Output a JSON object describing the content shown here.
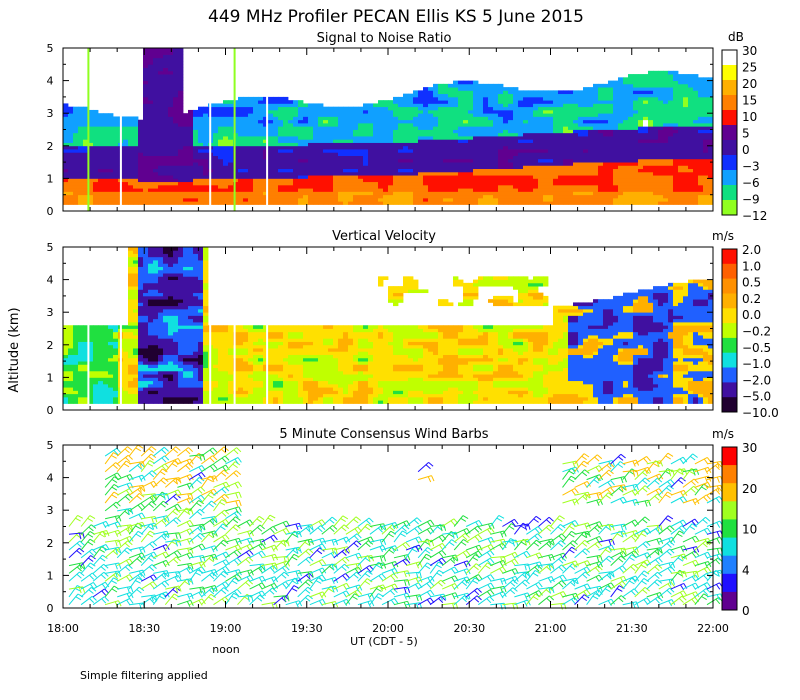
{
  "title": "449 MHz Profiler PECAN Ellis KS  5 June 2015",
  "footnote": "Simple filtering applied",
  "y_axis_label": "Altitude (km)",
  "y_ticks": [
    "0",
    "1",
    "2",
    "3",
    "4",
    "5"
  ],
  "x_axis": {
    "label": "UT  (CDT - 5)",
    "ticks": [
      "18:00",
      "18:30",
      "19:00",
      "19:30",
      "20:00",
      "20:30",
      "21:00",
      "21:30",
      "22:00"
    ],
    "noon_label": "noon",
    "range_hours": [
      18,
      22
    ]
  },
  "panels": [
    {
      "title": "Signal to Noise Ratio",
      "unit": "dB",
      "colorbar": {
        "labels": [
          "30",
          "25",
          "20",
          "15",
          "10",
          "5",
          "0",
          "−3",
          "−6",
          "−9",
          "−12"
        ],
        "colors": [
          "#ffffff",
          "#ffff00",
          "#ffb000",
          "#ff7f00",
          "#ff1000",
          "#600090",
          "#4010a0",
          "#1030ff",
          "#10a0ff",
          "#10e080",
          "#90ff20"
        ]
      }
    },
    {
      "title": "Vertical Velocity",
      "unit": "m/s",
      "colorbar": {
        "labels": [
          "2.0",
          "1.0",
          "0.5",
          "0.2",
          "0.0",
          "−0.2",
          "−0.5",
          "−1.0",
          "−2.0",
          "−5.0",
          "−10.0"
        ],
        "colors": [
          "#ff1000",
          "#ff6000",
          "#ff9000",
          "#ffb000",
          "#ffe000",
          "#c0ff00",
          "#20e040",
          "#10e0e0",
          "#2060ff",
          "#4010a0",
          "#200030"
        ]
      }
    },
    {
      "title": "5 Minute Consensus Wind Barbs",
      "unit": "m/s",
      "colorbar": {
        "labels": [
          "30",
          "20",
          "10",
          "4",
          "0"
        ],
        "colors": [
          "#ff0000",
          "#ff8000",
          "#ffc000",
          "#a0ff20",
          "#20e040",
          "#10e0e0",
          "#2080ff",
          "#2010ff",
          "#600090"
        ]
      }
    }
  ],
  "chart_data": [
    {
      "type": "heatmap",
      "title": "Signal to Noise Ratio",
      "xlabel": "UT  (CDT - 5)",
      "ylabel": "Altitude (km)",
      "x": [
        "18:00",
        "18:30",
        "19:00",
        "19:30",
        "20:00",
        "20:30",
        "21:00",
        "21:30",
        "22:00"
      ],
      "ylim": [
        0,
        5
      ],
      "colorbar_unit": "dB",
      "colorbar_levels": [
        30,
        25,
        20,
        15,
        10,
        5,
        0,
        -3,
        -6,
        -9,
        -12
      ]
    },
    {
      "type": "heatmap",
      "title": "Vertical Velocity",
      "xlabel": "UT  (CDT - 5)",
      "ylabel": "Altitude (km)",
      "x": [
        "18:00",
        "18:30",
        "19:00",
        "19:30",
        "20:00",
        "20:30",
        "21:00",
        "21:30",
        "22:00"
      ],
      "ylim": [
        0,
        5
      ],
      "colorbar_unit": "m/s",
      "colorbar_levels": [
        2.0,
        1.0,
        0.5,
        0.2,
        0.0,
        -0.2,
        -0.5,
        -1.0,
        -2.0,
        -5.0,
        -10.0
      ]
    },
    {
      "type": "scatter",
      "title": "5 Minute Consensus Wind Barbs",
      "xlabel": "UT  (CDT - 5)",
      "ylabel": "Altitude (km)",
      "x": [
        "18:00",
        "18:30",
        "19:00",
        "19:30",
        "20:00",
        "20:30",
        "21:00",
        "21:30",
        "22:00"
      ],
      "ylim": [
        0,
        5
      ],
      "colorbar_unit": "m/s",
      "colorbar_levels": [
        30,
        20,
        10,
        4,
        0
      ]
    }
  ]
}
